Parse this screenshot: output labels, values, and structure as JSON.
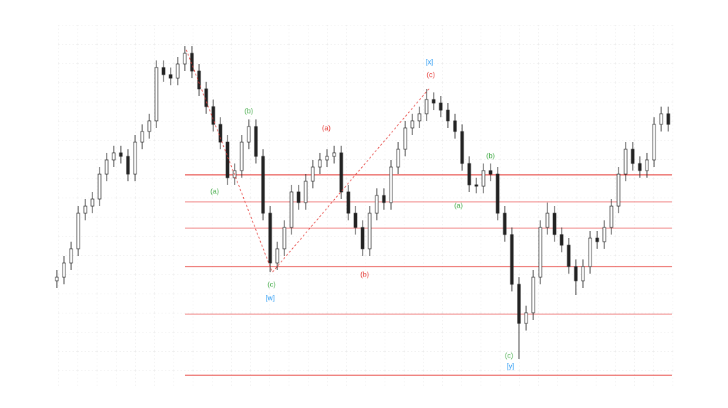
{
  "chart_data": {
    "type": "candlestick",
    "xlim": [
      0,
      86.5
    ],
    "ylim": [
      0,
      510
    ],
    "up_color": "#ffffff",
    "down_color": "#222222",
    "outline_color": "#222222",
    "open": [
      150,
      155,
      175,
      195,
      245,
      255,
      265,
      300,
      320,
      330,
      325,
      300,
      345,
      360,
      375,
      450,
      440,
      435,
      455,
      470,
      445,
      420,
      395,
      370,
      345,
      295,
      305,
      345,
      367,
      325,
      245,
      175,
      195,
      225,
      275,
      260,
      290,
      310,
      320,
      325,
      330,
      275,
      245,
      225,
      195,
      245,
      270,
      260,
      310,
      335,
      365,
      375,
      385,
      405,
      400,
      390,
      375,
      360,
      315,
      285,
      283,
      305,
      300,
      245,
      215,
      145,
      90,
      105,
      155,
      225,
      245,
      215,
      200,
      170,
      150,
      170,
      210,
      205,
      225,
      255,
      300,
      335,
      315,
      305,
      320,
      370,
      385
    ],
    "high": [
      165,
      185,
      205,
      255,
      265,
      275,
      310,
      330,
      340,
      340,
      335,
      355,
      370,
      385,
      460,
      460,
      450,
      465,
      480,
      480,
      455,
      430,
      405,
      380,
      355,
      315,
      355,
      377,
      377,
      335,
      255,
      205,
      235,
      285,
      285,
      300,
      320,
      330,
      335,
      340,
      340,
      285,
      255,
      235,
      255,
      280,
      280,
      320,
      345,
      375,
      385,
      395,
      420,
      415,
      410,
      400,
      385,
      370,
      325,
      295,
      315,
      315,
      310,
      255,
      225,
      155,
      115,
      165,
      235,
      260,
      255,
      225,
      210,
      180,
      180,
      220,
      220,
      235,
      265,
      310,
      345,
      345,
      325,
      330,
      380,
      395,
      395
    ],
    "low": [
      140,
      145,
      165,
      185,
      235,
      245,
      255,
      290,
      310,
      315,
      290,
      290,
      335,
      350,
      365,
      430,
      425,
      425,
      445,
      435,
      410,
      385,
      360,
      335,
      285,
      285,
      295,
      335,
      315,
      235,
      162,
      165,
      185,
      215,
      250,
      250,
      280,
      300,
      310,
      315,
      265,
      235,
      215,
      185,
      185,
      235,
      250,
      250,
      300,
      325,
      355,
      365,
      375,
      390,
      380,
      365,
      350,
      305,
      275,
      273,
      273,
      290,
      235,
      205,
      135,
      40,
      80,
      95,
      145,
      215,
      205,
      190,
      160,
      130,
      140,
      160,
      195,
      195,
      215,
      245,
      290,
      305,
      295,
      295,
      310,
      360,
      360
    ],
    "close": [
      155,
      175,
      195,
      245,
      255,
      265,
      300,
      320,
      330,
      325,
      300,
      345,
      360,
      375,
      450,
      440,
      435,
      455,
      470,
      445,
      420,
      395,
      370,
      345,
      295,
      305,
      345,
      367,
      325,
      245,
      175,
      195,
      225,
      275,
      260,
      290,
      310,
      320,
      325,
      330,
      275,
      245,
      225,
      195,
      245,
      270,
      260,
      310,
      335,
      365,
      375,
      385,
      405,
      400,
      390,
      375,
      360,
      315,
      285,
      283,
      305,
      300,
      245,
      215,
      145,
      90,
      105,
      155,
      225,
      245,
      215,
      200,
      170,
      150,
      170,
      210,
      205,
      225,
      255,
      300,
      335,
      315,
      305,
      320,
      370,
      385,
      370
    ],
    "levels": [
      {
        "value": 299,
        "color": "#e53935"
      },
      {
        "value": 261,
        "color": "#f08a8a"
      },
      {
        "value": 224,
        "color": "#f08a8a"
      },
      {
        "value": 170,
        "color": "#e53935"
      },
      {
        "value": 103,
        "color": "#f08a8a"
      },
      {
        "value": 17,
        "color": "#e53935"
      }
    ],
    "levels_start": 18,
    "wave_path": {
      "x": [
        18.2,
        30.3,
        52.5
      ],
      "y": [
        475,
        162,
        422
      ],
      "color": "#e53935"
    },
    "annotations": [
      {
        "text": "(a)",
        "x": 22.2,
        "y": 275,
        "color": "#4caf50"
      },
      {
        "text": "(b)",
        "x": 27,
        "y": 388,
        "color": "#4caf50"
      },
      {
        "text": "(c)",
        "x": 30.2,
        "y": 144,
        "color": "#4caf50"
      },
      {
        "text": "[w]",
        "x": 30,
        "y": 125,
        "color": "#2196f3"
      },
      {
        "text": "(a)",
        "x": 37.9,
        "y": 364,
        "color": "#e53935"
      },
      {
        "text": "(b)",
        "x": 43.3,
        "y": 158,
        "color": "#e53935"
      },
      {
        "text": "[x]",
        "x": 52.4,
        "y": 457,
        "color": "#2196f3"
      },
      {
        "text": "(c)",
        "x": 52.6,
        "y": 439,
        "color": "#e53935"
      },
      {
        "text": "(b)",
        "x": 61,
        "y": 325,
        "color": "#4caf50"
      },
      {
        "text": "(a)",
        "x": 56.5,
        "y": 255,
        "color": "#4caf50"
      },
      {
        "text": "(c)",
        "x": 63.6,
        "y": 44,
        "color": "#4caf50"
      },
      {
        "text": "[y]",
        "x": 63.8,
        "y": 29,
        "color": "#2196f3"
      }
    ]
  }
}
